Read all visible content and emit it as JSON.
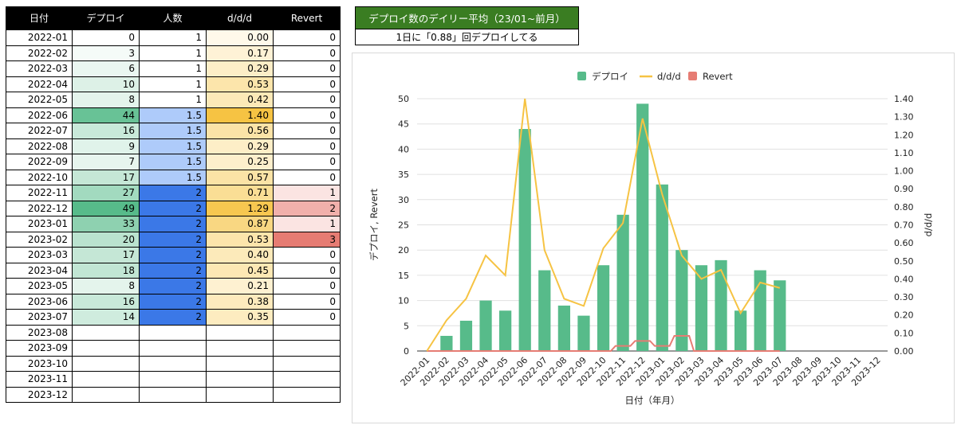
{
  "table": {
    "headers": [
      "日付",
      "デプロイ",
      "人数",
      "d/d/d",
      "Revert"
    ],
    "rows": [
      [
        "2022-01",
        "0",
        "1",
        "0.00",
        "0"
      ],
      [
        "2022-02",
        "3",
        "1",
        "0.17",
        "0"
      ],
      [
        "2022-03",
        "6",
        "1",
        "0.29",
        "0"
      ],
      [
        "2022-04",
        "10",
        "1",
        "0.53",
        "0"
      ],
      [
        "2022-05",
        "8",
        "1",
        "0.42",
        "0"
      ],
      [
        "2022-06",
        "44",
        "1.5",
        "1.40",
        "0"
      ],
      [
        "2022-07",
        "16",
        "1.5",
        "0.56",
        "0"
      ],
      [
        "2022-08",
        "9",
        "1.5",
        "0.29",
        "0"
      ],
      [
        "2022-09",
        "7",
        "1.5",
        "0.25",
        "0"
      ],
      [
        "2022-10",
        "17",
        "1.5",
        "0.57",
        "0"
      ],
      [
        "2022-11",
        "27",
        "2",
        "0.71",
        "1"
      ],
      [
        "2022-12",
        "49",
        "2",
        "1.29",
        "2"
      ],
      [
        "2023-01",
        "33",
        "2",
        "0.87",
        "1"
      ],
      [
        "2023-02",
        "20",
        "2",
        "0.53",
        "3"
      ],
      [
        "2023-03",
        "17",
        "2",
        "0.40",
        "0"
      ],
      [
        "2023-04",
        "18",
        "2",
        "0.45",
        "0"
      ],
      [
        "2023-05",
        "8",
        "2",
        "0.21",
        "0"
      ],
      [
        "2023-06",
        "16",
        "2",
        "0.38",
        "0"
      ],
      [
        "2023-07",
        "14",
        "2",
        "0.35",
        "0"
      ],
      [
        "2023-08",
        "",
        "",
        "",
        ""
      ],
      [
        "2023-09",
        "",
        "",
        "",
        ""
      ],
      [
        "2023-10",
        "",
        "",
        "",
        ""
      ],
      [
        "2023-11",
        "",
        "",
        "",
        ""
      ],
      [
        "2023-12",
        "",
        "",
        "",
        ""
      ]
    ],
    "header_bg": "#000000",
    "header_fg": "#ffffff"
  },
  "summary": {
    "title": "デプロイ数のデイリー平均（23/01~前月）",
    "value": "1日に「0.88」回デプロイしてる",
    "title_bg": "#3a7d22"
  },
  "colors": {
    "deploy": "#57bb8a",
    "ddd": "#f6c343",
    "revert": "#e67c73",
    "people_low": "#aecbfa",
    "people_high": "#3b78e7"
  },
  "chart_data": {
    "type": "bar",
    "categories": [
      "2022-01",
      "2022-02",
      "2022-03",
      "2022-04",
      "2022-05",
      "2022-06",
      "2022-07",
      "2022-08",
      "2022-09",
      "2022-10",
      "2022-11",
      "2022-12",
      "2023-01",
      "2023-02",
      "2023-03",
      "2023-04",
      "2023-05",
      "2023-06",
      "2023-07",
      "2023-08",
      "2023-09",
      "2023-10",
      "2023-11",
      "2023-12"
    ],
    "series": [
      {
        "name": "デプロイ",
        "type": "bar",
        "axis": "left",
        "color": "#57bb8a",
        "values": [
          0,
          3,
          6,
          10,
          8,
          44,
          16,
          9,
          7,
          17,
          27,
          49,
          33,
          20,
          17,
          18,
          8,
          16,
          14,
          null,
          null,
          null,
          null,
          null
        ]
      },
      {
        "name": "d/d/d",
        "type": "line",
        "axis": "right",
        "color": "#f6c343",
        "values": [
          0.0,
          0.17,
          0.29,
          0.53,
          0.42,
          1.4,
          0.56,
          0.29,
          0.25,
          0.57,
          0.71,
          1.29,
          0.87,
          0.53,
          0.4,
          0.45,
          0.21,
          0.38,
          0.35,
          null,
          null,
          null,
          null,
          null
        ]
      },
      {
        "name": "Revert",
        "type": "line",
        "axis": "left",
        "color": "#e67c73",
        "values": [
          0,
          0,
          0,
          0,
          0,
          0,
          0,
          0,
          0,
          0,
          1,
          2,
          1,
          3,
          0,
          0,
          0,
          0,
          0,
          null,
          null,
          null,
          null,
          null
        ]
      }
    ],
    "xlabel": "日付（年月）",
    "ylabel_left": "デプロイ, Revert",
    "ylabel_right": "d/d/d",
    "ylim_left": [
      0,
      50
    ],
    "ylim_right": [
      0,
      1.4
    ],
    "yticks_left": [
      "0",
      "5",
      "10",
      "15",
      "20",
      "25",
      "30",
      "35",
      "40",
      "45",
      "50"
    ],
    "yticks_right": [
      "0.00",
      "0.10",
      "0.20",
      "0.30",
      "0.40",
      "0.50",
      "0.60",
      "0.70",
      "0.80",
      "0.90",
      "1.00",
      "1.10",
      "1.20",
      "1.30",
      "1.40"
    ],
    "grid": true,
    "legend_position": "top"
  }
}
